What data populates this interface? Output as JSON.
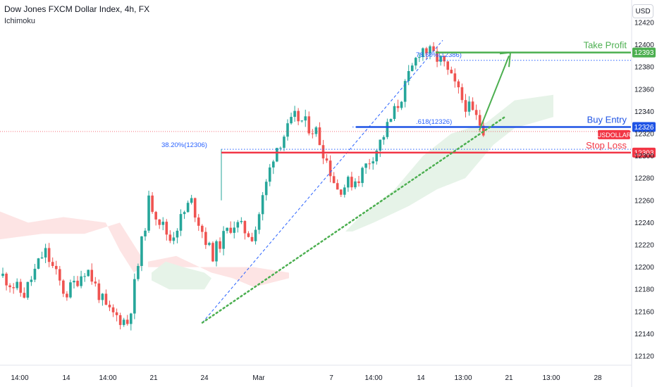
{
  "header": {
    "title": "Dow Jones FXCM Dollar Index, 4h, FX",
    "indicator": "Ichimoku",
    "currency": "USD"
  },
  "colors": {
    "up": "#26a69a",
    "down": "#ef5350",
    "buy_entry": "#1e53e5",
    "stop_loss": "#f23645",
    "take_profit": "#4caf50",
    "fib": "#2962ff",
    "trendline": "#4caf50",
    "cloud_bull": "#e6f3e8",
    "cloud_bear": "#fde4e4"
  },
  "chart_data": {
    "type": "candlestick",
    "symbol": "USDOLLAR",
    "y_ticks": [
      12120,
      12140,
      12160,
      12180,
      12200,
      12220,
      12240,
      12260,
      12280,
      12300,
      12320,
      12340,
      12360,
      12380,
      12400,
      12420
    ],
    "x_ticks": [
      "14:00",
      "14",
      "14:00",
      "21",
      "24",
      "Mar",
      "7",
      "14:00",
      "14",
      "13:00",
      "21",
      "13:00",
      "28"
    ],
    "levels": [
      {
        "label": "Take Profit",
        "value": 12393,
        "badge": "12393"
      },
      {
        "label": "Buy Entry",
        "value": 12326,
        "badge": "12326"
      },
      {
        "label": "Stop Loss",
        "value": 12303,
        "badge": "12303"
      }
    ],
    "last_price_label": "USDOLLAR",
    "fib_labels": [
      {
        "text": "78.60%(12386)",
        "value": 12386
      },
      {
        "text": ".618(12326)",
        "value": 12326
      },
      {
        "text": "38.20%(12306)",
        "value": 12306
      }
    ],
    "trendline": {
      "from": 12150,
      "to": 12335
    },
    "fib_swing": {
      "low": 12150,
      "high": 12404
    },
    "anchors": [
      {
        "name": "close",
        "value": 12192
      },
      {
        "name": "close",
        "value": 12175
      },
      {
        "name": "close",
        "value": 12215
      },
      {
        "name": "close",
        "value": 12175
      },
      {
        "name": "close",
        "value": 12200
      },
      {
        "name": "close",
        "value": 12160
      },
      {
        "name": "close",
        "value": 12150
      },
      {
        "name": "close",
        "value": 12260
      },
      {
        "name": "close",
        "value": 12225
      },
      {
        "name": "close",
        "value": 12260
      },
      {
        "name": "close",
        "value": 12210
      },
      {
        "name": "close",
        "value": 12240
      },
      {
        "name": "close",
        "value": 12228
      },
      {
        "name": "close",
        "value": 12305
      },
      {
        "name": "close",
        "value": 12335
      },
      {
        "name": "close",
        "value": 12322
      },
      {
        "name": "close",
        "value": 12270
      },
      {
        "name": "close",
        "value": 12280
      },
      {
        "name": "close",
        "value": 12310
      },
      {
        "name": "close",
        "value": 12350
      },
      {
        "name": "close",
        "value": 12398
      },
      {
        "name": "close",
        "value": 12385
      },
      {
        "name": "close",
        "value": 12350
      },
      {
        "name": "close",
        "value": 12325
      }
    ]
  }
}
